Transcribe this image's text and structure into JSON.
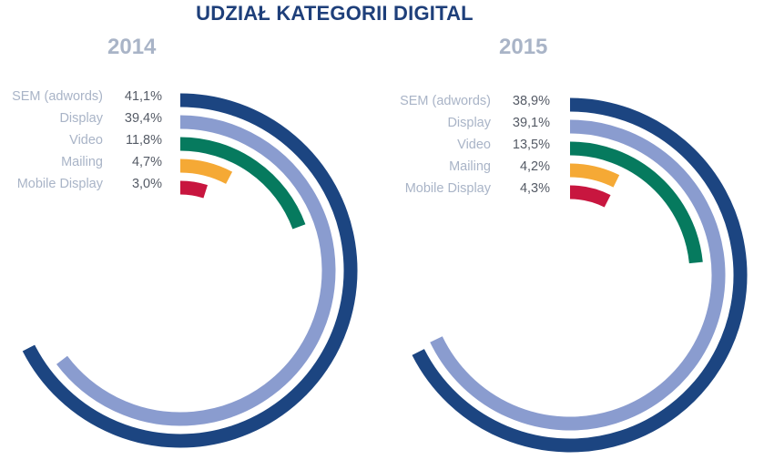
{
  "title": "UDZIAŁ KATEGORII DIGITAL",
  "chart_data": [
    {
      "type": "radial-bar",
      "title": "2014",
      "categories": [
        "SEM (adwords)",
        "Display",
        "Video",
        "Mailing",
        "Mobile Display"
      ],
      "values": [
        41.1,
        39.4,
        11.8,
        4.7,
        3.0
      ],
      "value_labels": [
        "41,1%",
        "39,4%",
        "11,8%",
        "4,7%",
        "3,0%"
      ],
      "colors": [
        "#1c4581",
        "#8a9ccf",
        "#067a5e",
        "#f5a935",
        "#c8163f"
      ],
      "scale_max_percent": 60.9
    },
    {
      "type": "radial-bar",
      "title": "2015",
      "categories": [
        "SEM (adwords)",
        "Display",
        "Video",
        "Mailing",
        "Mobile Display"
      ],
      "values": [
        38.9,
        39.1,
        13.5,
        4.2,
        4.3
      ],
      "value_labels": [
        "38,9%",
        "39,1%",
        "13,5%",
        "4,2%",
        "4,3%"
      ],
      "colors": [
        "#1c4581",
        "#8a9ccf",
        "#067a5e",
        "#f5a935",
        "#c8163f"
      ],
      "scale_max_percent": 57.6
    }
  ]
}
